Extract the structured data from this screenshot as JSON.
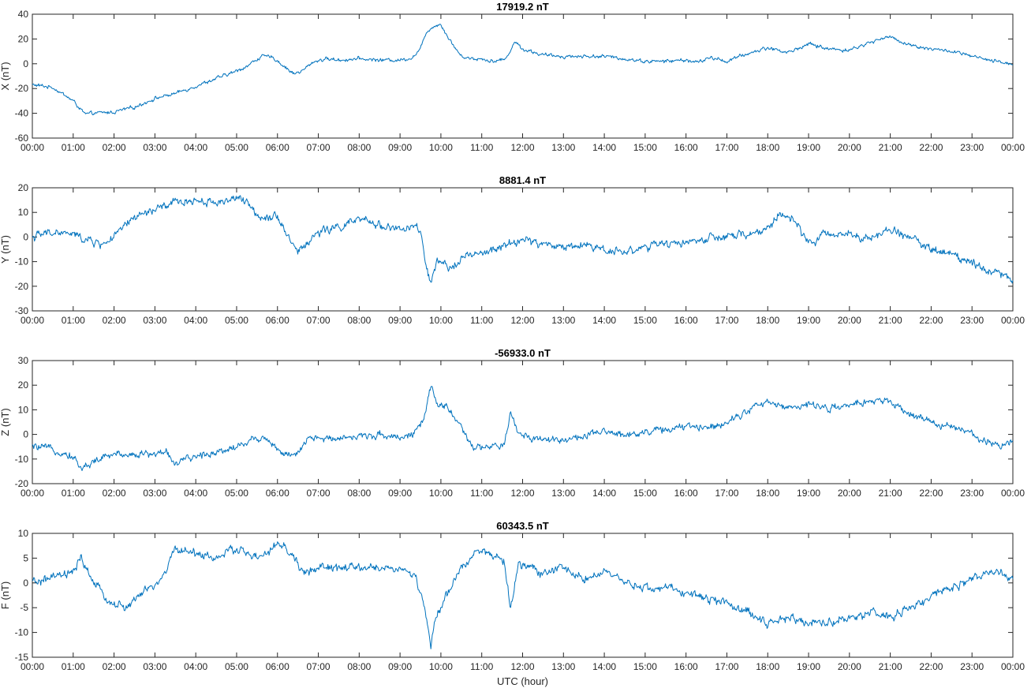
{
  "figure": {
    "xlabel": "UTC (hour)",
    "line_color": "#0072BD"
  },
  "chart_data": [
    {
      "type": "line",
      "title": "17919.2 nT",
      "ylabel": "X (nT)",
      "ylim": [
        -60,
        40
      ],
      "yticks": [
        -60,
        -40,
        -20,
        0,
        20,
        40
      ],
      "xlim": [
        0,
        24
      ],
      "xtick_labels": [
        "00:00",
        "01:00",
        "02:00",
        "03:00",
        "04:00",
        "05:00",
        "06:00",
        "07:00",
        "08:00",
        "09:00",
        "10:00",
        "11:00",
        "12:00",
        "13:00",
        "14:00",
        "15:00",
        "16:00",
        "17:00",
        "18:00",
        "19:00",
        "20:00",
        "21:00",
        "22:00",
        "23:00",
        "00:00"
      ],
      "noise": 1.2,
      "x": [
        0,
        0.5,
        1.0,
        1.3,
        1.5,
        2.0,
        2.5,
        3.0,
        3.5,
        4.0,
        4.5,
        5.0,
        5.3,
        5.6,
        5.9,
        6.2,
        6.4,
        6.6,
        6.9,
        7.2,
        7.5,
        8.0,
        8.5,
        9.0,
        9.3,
        9.5,
        9.65,
        9.8,
        10.0,
        10.2,
        10.5,
        10.8,
        11.0,
        11.3,
        11.6,
        11.8,
        12.0,
        12.5,
        13.0,
        13.5,
        14.0,
        14.5,
        15.0,
        15.5,
        16.0,
        16.3,
        16.6,
        17.0,
        17.5,
        18.0,
        18.5,
        19.0,
        19.5,
        20.0,
        20.5,
        20.9,
        21.2,
        21.5,
        22.0,
        22.5,
        23.0,
        23.5,
        24.0
      ],
      "y": [
        -17,
        -19,
        -30,
        -41,
        -40,
        -39,
        -35,
        -28,
        -24,
        -18,
        -12,
        -6,
        -1,
        6,
        5,
        -3,
        -8,
        -6,
        2,
        4,
        3,
        4,
        3,
        3,
        5,
        12,
        26,
        30,
        32,
        20,
        6,
        4,
        4,
        2,
        4,
        18,
        12,
        7,
        6,
        6,
        6,
        4,
        2,
        2,
        3,
        1,
        5,
        2,
        8,
        13,
        9,
        16,
        12,
        11,
        17,
        22,
        19,
        15,
        12,
        10,
        6,
        2,
        0
      ]
    },
    {
      "type": "line",
      "title": "8881.4 nT",
      "ylabel": "Y (nT)",
      "ylim": [
        -30,
        20
      ],
      "yticks": [
        -30,
        -20,
        -10,
        0,
        10,
        20
      ],
      "xlim": [
        0,
        24
      ],
      "xtick_labels": [
        "00:00",
        "01:00",
        "02:00",
        "03:00",
        "04:00",
        "05:00",
        "06:00",
        "07:00",
        "08:00",
        "09:00",
        "10:00",
        "11:00",
        "12:00",
        "13:00",
        "14:00",
        "15:00",
        "16:00",
        "17:00",
        "18:00",
        "19:00",
        "20:00",
        "21:00",
        "22:00",
        "23:00",
        "00:00"
      ],
      "noise": 1.4,
      "x": [
        0,
        0.5,
        1.0,
        1.3,
        1.7,
        2.0,
        2.5,
        3.0,
        3.5,
        4.0,
        4.5,
        5.0,
        5.3,
        5.6,
        6.0,
        6.2,
        6.5,
        6.7,
        7.0,
        7.5,
        8.0,
        8.5,
        9.0,
        9.4,
        9.5,
        9.6,
        9.75,
        9.9,
        10.2,
        10.5,
        11.0,
        11.5,
        12.0,
        12.5,
        13.0,
        13.5,
        14.0,
        14.5,
        15.0,
        15.5,
        16.0,
        16.5,
        17.0,
        17.5,
        18.0,
        18.3,
        18.6,
        19.0,
        19.5,
        20.0,
        20.5,
        21.0,
        21.5,
        22.0,
        22.5,
        23.0,
        23.5,
        24.0
      ],
      "y": [
        0,
        2,
        1,
        -1,
        -3,
        0,
        8,
        11,
        14,
        15,
        14,
        16,
        13,
        8,
        9,
        2,
        -6,
        -3,
        2,
        4,
        7,
        5,
        3,
        4,
        2,
        -8,
        -20,
        -10,
        -13,
        -8,
        -7,
        -4,
        -1,
        -3,
        -4,
        -3,
        -5,
        -6,
        -4,
        -3,
        -2,
        -1,
        0,
        1,
        3,
        10,
        7,
        -2,
        1,
        2,
        -1,
        3,
        0,
        -5,
        -7,
        -10,
        -14,
        -17
      ]
    },
    {
      "type": "line",
      "title": "-56933.0 nT",
      "ylabel": "Z (nT)",
      "ylim": [
        -20,
        30
      ],
      "yticks": [
        -20,
        -10,
        0,
        10,
        20,
        30
      ],
      "xlim": [
        0,
        24
      ],
      "xtick_labels": [
        "00:00",
        "01:00",
        "02:00",
        "03:00",
        "04:00",
        "05:00",
        "06:00",
        "07:00",
        "08:00",
        "09:00",
        "10:00",
        "11:00",
        "12:00",
        "13:00",
        "14:00",
        "15:00",
        "16:00",
        "17:00",
        "18:00",
        "19:00",
        "20:00",
        "21:00",
        "22:00",
        "23:00",
        "00:00"
      ],
      "noise": 1.2,
      "x": [
        0,
        0.5,
        1.0,
        1.2,
        1.5,
        2.0,
        2.5,
        3.0,
        3.3,
        3.5,
        4.0,
        4.5,
        5.0,
        5.4,
        5.7,
        6.0,
        6.3,
        6.5,
        6.8,
        7.0,
        7.5,
        8.0,
        8.5,
        9.0,
        9.3,
        9.6,
        9.75,
        9.9,
        10.2,
        10.5,
        10.8,
        11.0,
        11.3,
        11.55,
        11.7,
        11.9,
        12.2,
        12.5,
        13.0,
        13.5,
        14.0,
        14.5,
        15.0,
        15.5,
        16.0,
        16.5,
        17.0,
        17.5,
        18.0,
        18.5,
        19.0,
        19.5,
        20.0,
        20.5,
        21.0,
        21.5,
        22.0,
        22.5,
        23.0,
        23.5,
        24.0
      ],
      "y": [
        -5,
        -6,
        -9,
        -14,
        -11,
        -8,
        -8,
        -8,
        -7,
        -12,
        -9,
        -7,
        -5,
        -2,
        -1,
        -6,
        -9,
        -8,
        -1,
        -2,
        -1,
        -1,
        0,
        -1,
        0,
        6,
        20,
        12,
        11,
        2,
        -6,
        -5,
        -5,
        -5,
        9,
        0,
        -1,
        -2,
        -2,
        -1,
        1,
        0,
        1,
        2,
        3,
        3,
        5,
        10,
        13,
        11,
        12,
        11,
        11,
        14,
        13,
        8,
        5,
        3,
        0,
        -4,
        -3
      ]
    },
    {
      "type": "line",
      "title": "60343.5 nT",
      "ylabel": "F (nT)",
      "ylim": [
        -15,
        10
      ],
      "yticks": [
        -15,
        -10,
        -5,
        0,
        5,
        10
      ],
      "xlim": [
        0,
        24
      ],
      "xtick_labels": [
        "00:00",
        "01:00",
        "02:00",
        "03:00",
        "04:00",
        "05:00",
        "06:00",
        "07:00",
        "08:00",
        "09:00",
        "10:00",
        "11:00",
        "12:00",
        "13:00",
        "14:00",
        "15:00",
        "16:00",
        "17:00",
        "18:00",
        "19:00",
        "20:00",
        "21:00",
        "22:00",
        "23:00",
        "00:00"
      ],
      "noise": 0.7,
      "x": [
        0,
        0.5,
        1.0,
        1.2,
        1.5,
        1.9,
        2.3,
        2.7,
        3.1,
        3.3,
        3.5,
        4.0,
        4.5,
        5.0,
        5.5,
        5.8,
        6.0,
        6.2,
        6.5,
        6.6,
        7.0,
        7.5,
        8.0,
        8.5,
        9.0,
        9.4,
        9.6,
        9.75,
        9.85,
        10.0,
        10.3,
        10.5,
        10.8,
        11.0,
        11.3,
        11.55,
        11.7,
        11.9,
        12.2,
        12.5,
        13.0,
        13.5,
        14.0,
        14.5,
        15.0,
        15.5,
        16.0,
        16.5,
        17.0,
        17.5,
        18.0,
        18.5,
        19.0,
        19.5,
        20.0,
        20.5,
        21.0,
        21.5,
        22.0,
        22.5,
        23.0,
        23.5,
        24.0
      ],
      "y": [
        0,
        1,
        2,
        5,
        0,
        -4,
        -5,
        -2,
        0,
        3,
        7,
        6,
        5,
        7,
        5,
        6,
        8,
        7,
        4,
        2,
        3,
        3,
        3,
        3,
        3,
        1,
        -5,
        -13,
        -8,
        -5,
        0,
        3,
        6,
        7,
        5,
        4,
        -5,
        4,
        3,
        2,
        3,
        1,
        2,
        0,
        -1,
        -1,
        -2,
        -3,
        -4,
        -6,
        -8,
        -7,
        -8,
        -8,
        -7,
        -6,
        -7,
        -5,
        -3,
        -1,
        1,
        2,
        1
      ]
    }
  ]
}
